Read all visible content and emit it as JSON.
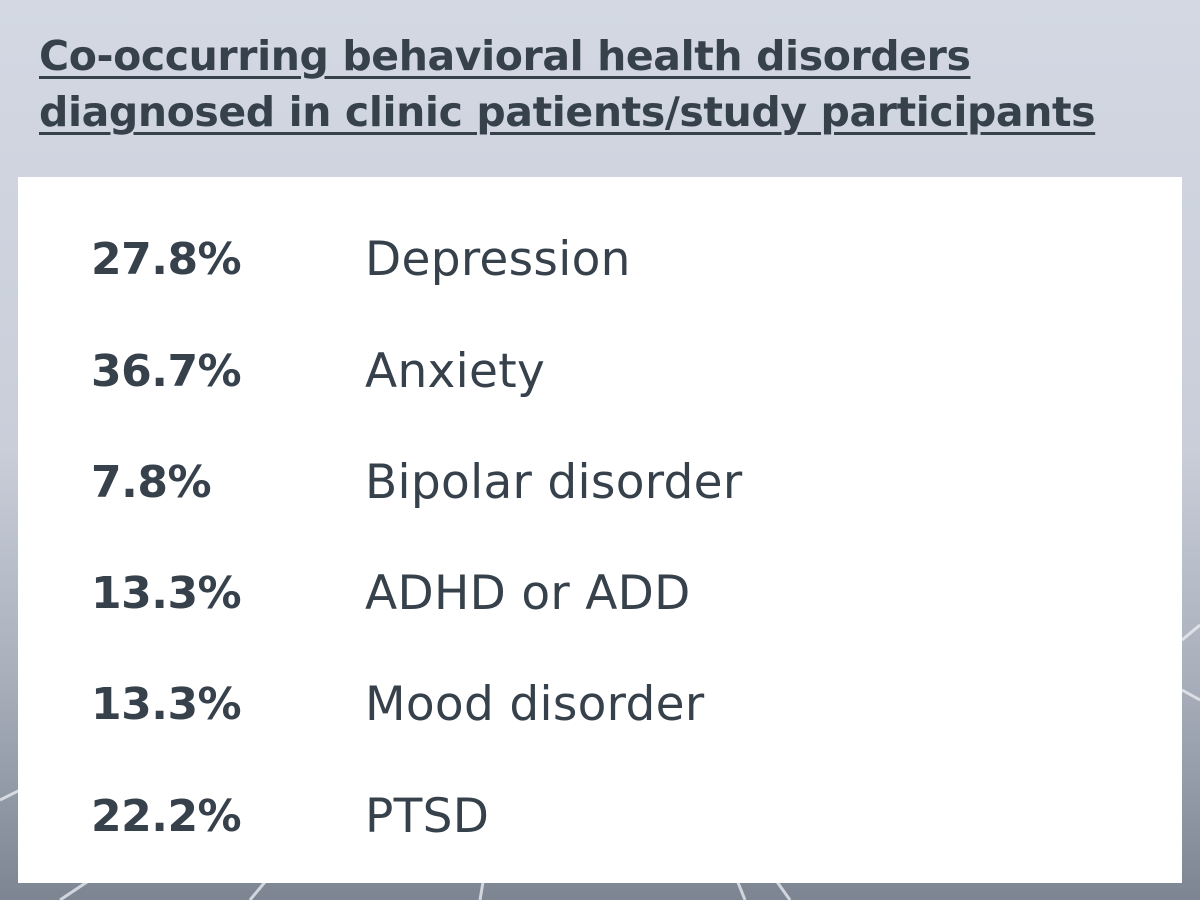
{
  "title": "Co-occurring behavioral health disorders diagnosed in clinic patients/study participants",
  "rows": [
    {
      "percent": "27.8%",
      "label": "Depression"
    },
    {
      "percent": "36.7%",
      "label": "Anxiety"
    },
    {
      "percent": "7.8%",
      "label": "Bipolar disorder"
    },
    {
      "percent": "13.3%",
      "label": "ADHD or ADD"
    },
    {
      "percent": "13.3%",
      "label": "Mood disorder"
    },
    {
      "percent": "22.2%",
      "label": "PTSD"
    }
  ],
  "colors": {
    "text": "#36414b",
    "panel": "#ffffff",
    "background": "#d3d8e3"
  }
}
